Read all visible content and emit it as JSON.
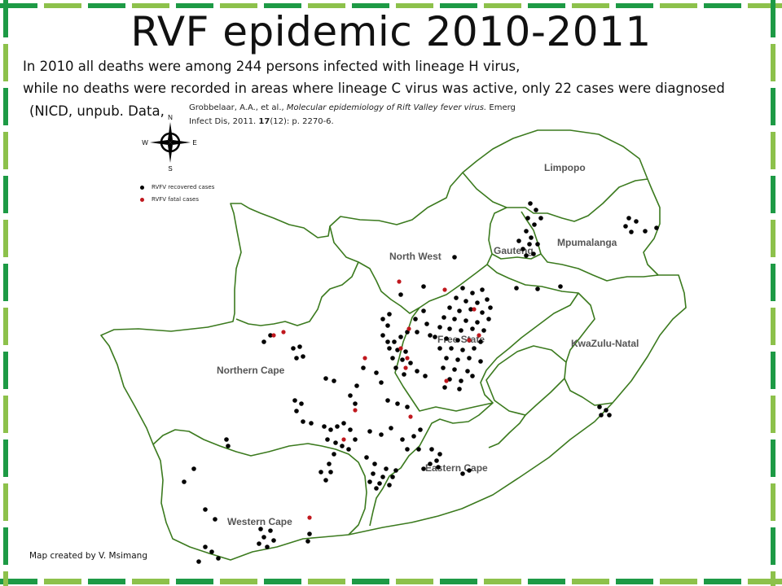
{
  "slide": {
    "title": "RVF epidemic 2010-2011",
    "line1": "In 2010 all deaths were among 244 persons infected with lineage H virus,",
    "line2": "while no deaths were recorded in areas where lineage C virus was active, only 22 cases were diagnosed",
    "line3": "(NICD, unpub. Data,",
    "citation": {
      "authors": "Grobbelaar, A.A., et al.,",
      "article_title": "Molecular epidemiology of Rift Valley fever virus.",
      "journal": "Emerg",
      "journal_cont": "Infect Dis, 2011.",
      "volume": "17",
      "issue_pages": "(12): p. 2270-6."
    },
    "credit": "Map created by V. Msimang"
  },
  "compass": {
    "n": "N",
    "s": "S",
    "e": "E",
    "w": "W"
  },
  "legend": {
    "recovered_label": "RVFV recovered cases",
    "fatal_label": "RVFV fatal cases"
  },
  "colors": {
    "border": "#3b7a1e",
    "recovered": "#000000",
    "fatal": "#c0181e",
    "frame_dark": "#1d9a45",
    "frame_light": "#8dc14b"
  },
  "provinces": {
    "limpopo": "Limpopo",
    "mpumalanga": "Mpumalanga",
    "gauteng": "Gauteng",
    "north_west": "North West",
    "free_state": "Free State",
    "kwazulu_natal": "KwaZulu-Natal",
    "northern_cape": "Northern Cape",
    "eastern_cape": "Eastern Cape",
    "western_cape": "Western Cape"
  }
}
